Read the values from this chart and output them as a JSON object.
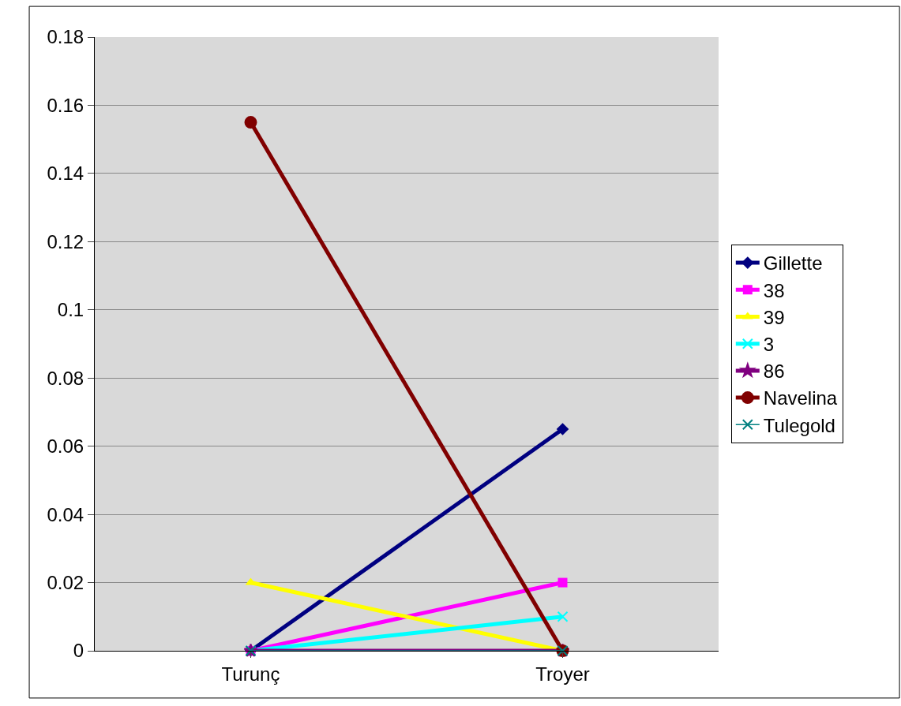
{
  "chart_data": {
    "type": "line",
    "categories": [
      "Turunç",
      "Troyer"
    ],
    "series": [
      {
        "name": "Gillette",
        "color": "#000080",
        "marker": "diamond",
        "values": [
          0,
          0.065
        ]
      },
      {
        "name": "38",
        "color": "#ff00ff",
        "marker": "square",
        "values": [
          0,
          0.02
        ]
      },
      {
        "name": "39",
        "color": "#ffff00",
        "marker": "triangle",
        "values": [
          0.02,
          0
        ]
      },
      {
        "name": "3",
        "color": "#00ffff",
        "marker": "cross",
        "values": [
          0,
          0.01
        ]
      },
      {
        "name": "86",
        "color": "#800080",
        "marker": "star",
        "values": [
          0,
          0
        ]
      },
      {
        "name": "Navelina",
        "color": "#800000",
        "marker": "circle",
        "values": [
          0.155,
          0
        ]
      },
      {
        "name": "Tulegold",
        "color": "#008080",
        "marker": "cross",
        "values": [
          0,
          0
        ]
      }
    ],
    "ylim": [
      0,
      0.18
    ],
    "yticks": [
      0,
      0.02,
      0.04,
      0.06,
      0.08,
      0.1,
      0.12,
      0.14,
      0.16,
      0.18
    ],
    "grid": "y",
    "legend": "right",
    "line_style": "solid"
  }
}
